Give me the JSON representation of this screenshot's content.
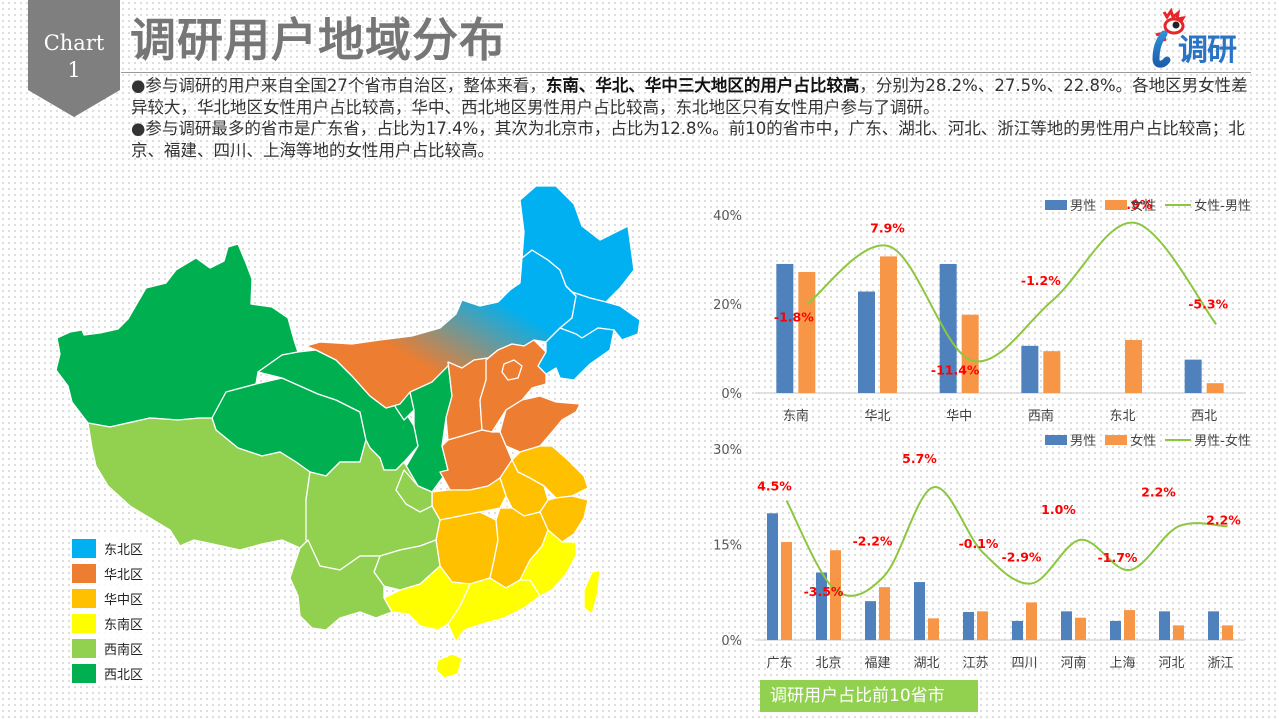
{
  "header": {
    "badge_line1": "Chart",
    "badge_line2": "1",
    "title": "调研用户地域分布",
    "logo_text": "调研",
    "logo_letter": "i"
  },
  "description": {
    "p1_pre": "●参与调研的用户来自全国27个省市自治区，整体来看，",
    "p1_bold": "东南、华北、华中三大地区的用户占比较高",
    "p1_post": "，分别为28.2%、27.5%、22.8%。各地区男女性差异较大，华北地区女性用户占比较高，华中、西北地区男性用户占比较高，东北地区只有女性用户参与了调研。",
    "p2": "●参与调研最多的省市是广东省，占比为17.4%，其次为北京市，占比为12.8%。前10的省市中，广东、湖北、河北、浙江等地的男性用户占比较高；北京、福建、四川、上海等地的女性用户占比较高。"
  },
  "map": {
    "legend": [
      {
        "label": "东北区",
        "color": "#00b0f0"
      },
      {
        "label": "华北区",
        "color": "#ed7d31"
      },
      {
        "label": "华中区",
        "color": "#ffc000"
      },
      {
        "label": "东南区",
        "color": "#ffff00"
      },
      {
        "label": "西南区",
        "color": "#92d050"
      },
      {
        "label": "西北区",
        "color": "#00b050"
      }
    ]
  },
  "colors": {
    "male": "#4f81bd",
    "female": "#f79646",
    "diff_line": "#8dc63f",
    "diff_label": "#ff0000",
    "caption_bg": "#92d050"
  },
  "caption": "调研用户占比前10省市",
  "chart_data": [
    {
      "type": "bar",
      "title": "",
      "categories": [
        "东南",
        "华北",
        "华中",
        "西南",
        "东北",
        "西北"
      ],
      "series": [
        {
          "name": "男性",
          "type": "bar",
          "values": [
            29.0,
            22.8,
            29.0,
            10.6,
            0.0,
            7.5
          ]
        },
        {
          "name": "女性",
          "type": "bar",
          "values": [
            27.2,
            30.7,
            17.6,
            9.4,
            11.9,
            2.2
          ]
        },
        {
          "name": "女性-男性",
          "type": "line",
          "values": [
            -1.8,
            7.9,
            -11.4,
            -1.2,
            11.9,
            -5.3
          ],
          "labels": [
            "-1.8%",
            "7.9%",
            "-11.4%",
            "-1.2%",
            "11.9%",
            "-5.3%"
          ]
        }
      ],
      "yticks": [
        "0%",
        "20%",
        "40%"
      ],
      "ylim": [
        0,
        40
      ],
      "xlabel": "",
      "ylabel": "",
      "legend_position": "top-right",
      "grid": false
    },
    {
      "type": "bar",
      "title": "调研用户占比前10省市",
      "categories": [
        "广东",
        "北京",
        "福建",
        "湖北",
        "江苏",
        "四川",
        "河南",
        "上海",
        "河北",
        "浙江"
      ],
      "series": [
        {
          "name": "男性",
          "type": "bar",
          "values": [
            19.9,
            10.6,
            6.1,
            9.1,
            4.4,
            3.0,
            4.5,
            3.0,
            4.5,
            4.5
          ]
        },
        {
          "name": "女性",
          "type": "bar",
          "values": [
            15.4,
            14.1,
            8.3,
            3.4,
            4.5,
            5.9,
            3.5,
            4.7,
            2.3,
            2.3
          ]
        },
        {
          "name": "男性-女性",
          "type": "line",
          "values": [
            4.5,
            -3.5,
            -2.2,
            5.7,
            -0.1,
            -2.9,
            1.0,
            -1.7,
            2.2,
            2.2
          ],
          "labels": [
            "4.5%",
            "-3.5%",
            "-2.2%",
            "5.7%",
            "-0.1%",
            "-2.9%",
            "1.0%",
            "-1.7%",
            "2.2%",
            "2.2%"
          ]
        }
      ],
      "yticks": [
        "0%",
        "15%",
        "30%"
      ],
      "ylim": [
        0,
        30
      ],
      "xlabel": "",
      "ylabel": "",
      "legend_position": "top-right",
      "grid": false
    }
  ]
}
